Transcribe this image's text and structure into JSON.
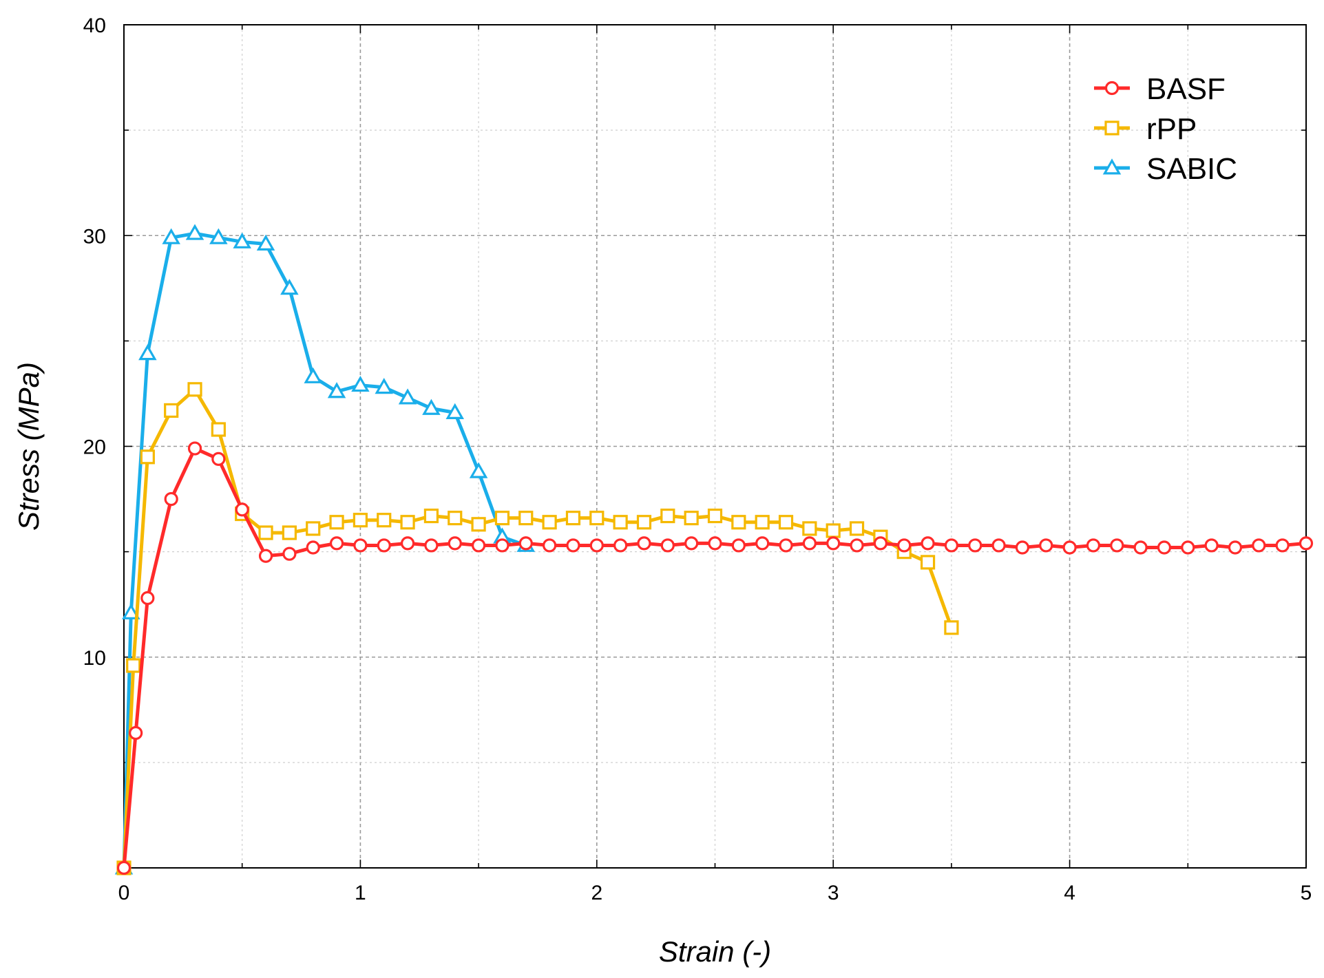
{
  "chart_data": {
    "type": "line",
    "xlabel": "Strain (-)",
    "ylabel": "Stress (MPa)",
    "xlim": [
      0,
      5
    ],
    "ylim": [
      0,
      40
    ],
    "x_ticks": [
      "0",
      "1",
      "2",
      "3",
      "4",
      "5"
    ],
    "y_ticks": [
      "10",
      "20",
      "30",
      "40"
    ],
    "grid": true,
    "legend_position": "top-right",
    "series": [
      {
        "name": "BASF",
        "color": "#ff2a2a",
        "marker": "circle",
        "x": [
          0,
          0.05,
          0.1,
          0.2,
          0.3,
          0.4,
          0.5,
          0.6,
          0.7,
          0.8,
          0.9,
          1.0,
          1.1,
          1.2,
          1.3,
          1.4,
          1.5,
          1.6,
          1.7,
          1.8,
          1.9,
          2.0,
          2.1,
          2.2,
          2.3,
          2.4,
          2.5,
          2.6,
          2.7,
          2.8,
          2.9,
          3.0,
          3.1,
          3.2,
          3.3,
          3.4,
          3.5,
          3.6,
          3.7,
          3.8,
          3.9,
          4.0,
          4.1,
          4.2,
          4.3,
          4.4,
          4.5,
          4.6,
          4.7,
          4.8,
          4.9,
          5.0
        ],
        "y": [
          0,
          6.4,
          12.8,
          17.5,
          19.9,
          19.4,
          17.0,
          14.8,
          14.9,
          15.2,
          15.4,
          15.3,
          15.3,
          15.4,
          15.3,
          15.4,
          15.3,
          15.3,
          15.4,
          15.3,
          15.3,
          15.3,
          15.3,
          15.4,
          15.3,
          15.4,
          15.4,
          15.3,
          15.4,
          15.3,
          15.4,
          15.4,
          15.3,
          15.4,
          15.3,
          15.4,
          15.3,
          15.3,
          15.3,
          15.2,
          15.3,
          15.2,
          15.3,
          15.3,
          15.2,
          15.2,
          15.2,
          15.3,
          15.2,
          15.3,
          15.3,
          15.4
        ]
      },
      {
        "name": "rPP",
        "color": "#f5b800",
        "marker": "square",
        "x": [
          0,
          0.04,
          0.1,
          0.2,
          0.3,
          0.4,
          0.5,
          0.6,
          0.7,
          0.8,
          0.9,
          1.0,
          1.1,
          1.2,
          1.3,
          1.4,
          1.5,
          1.6,
          1.7,
          1.8,
          1.9,
          2.0,
          2.1,
          2.2,
          2.3,
          2.4,
          2.5,
          2.6,
          2.7,
          2.8,
          2.9,
          3.0,
          3.1,
          3.2,
          3.3,
          3.4,
          3.5
        ],
        "y": [
          0,
          9.6,
          19.5,
          21.7,
          22.7,
          20.8,
          16.8,
          15.9,
          15.9,
          16.1,
          16.4,
          16.5,
          16.5,
          16.4,
          16.7,
          16.6,
          16.3,
          16.6,
          16.6,
          16.4,
          16.6,
          16.6,
          16.4,
          16.4,
          16.7,
          16.6,
          16.7,
          16.4,
          16.4,
          16.4,
          16.1,
          16.0,
          16.1,
          15.7,
          15.0,
          14.5,
          11.4
        ]
      },
      {
        "name": "SABIC",
        "color": "#1aaeea",
        "marker": "triangle",
        "x": [
          0,
          0.03,
          0.1,
          0.2,
          0.3,
          0.4,
          0.5,
          0.6,
          0.7,
          0.8,
          0.9,
          1.0,
          1.1,
          1.2,
          1.3,
          1.4,
          1.5,
          1.6,
          1.7
        ],
        "y": [
          0,
          12.1,
          24.4,
          29.9,
          30.1,
          29.9,
          29.7,
          29.6,
          27.5,
          23.3,
          22.6,
          22.9,
          22.8,
          22.3,
          21.8,
          21.6,
          18.8,
          15.7,
          15.3
        ]
      }
    ]
  }
}
